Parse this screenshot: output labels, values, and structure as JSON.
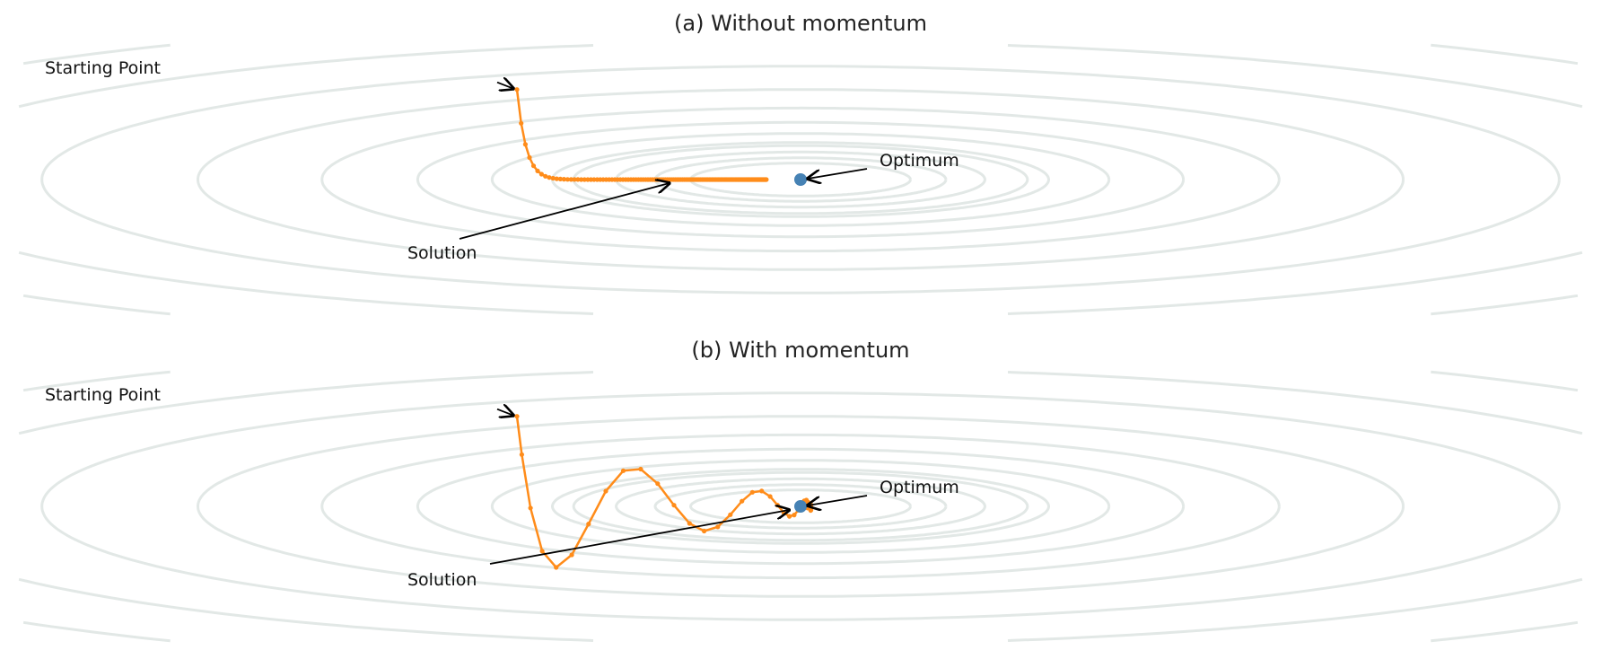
{
  "panels": [
    {
      "title": "(a) Without momentum",
      "start_label": "Starting Point",
      "optimum_label": "Optimum",
      "solution_label": "Solution",
      "optimizer": "gd",
      "start": [
        -4.0,
        1.7
      ],
      "optimum": [
        0.0,
        0.0
      ],
      "solution": [
        -1.8,
        0.0
      ]
    },
    {
      "title": "(b) With momentum",
      "start_label": "Starting Point",
      "optimum_label": "Optimum",
      "solution_label": "Solution",
      "optimizer": "momentum",
      "start": [
        -4.0,
        1.7
      ],
      "optimum": [
        0.0,
        0.0
      ],
      "solution": [
        -0.11,
        0.0
      ]
    }
  ],
  "colors": {
    "contour": "#e2e8e6",
    "path": "#ff8c1a",
    "optimum": "#4682b4"
  }
}
